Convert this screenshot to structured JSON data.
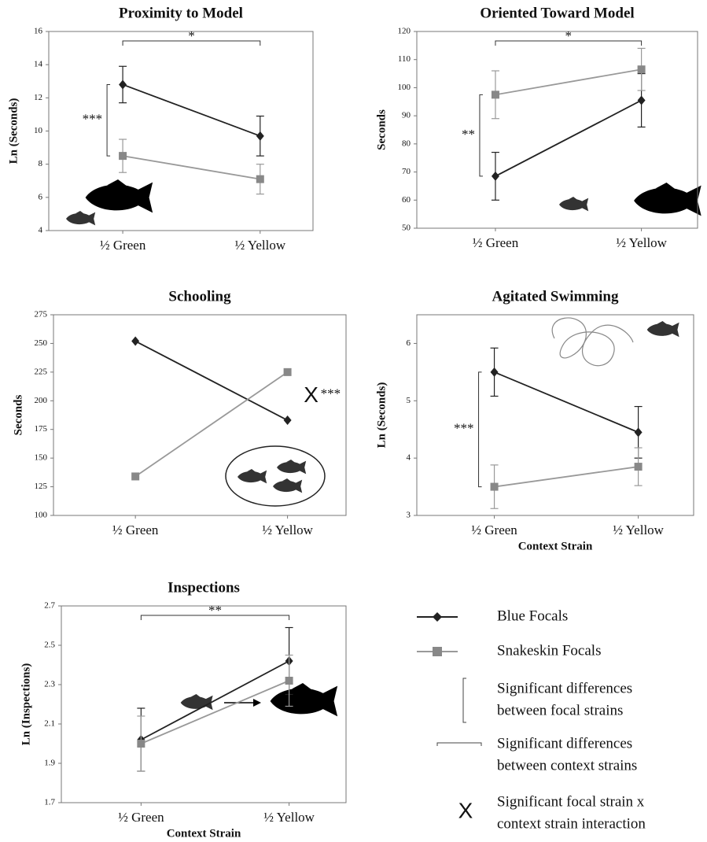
{
  "chart_data": [
    {
      "type": "line",
      "title": "Proximity to Model",
      "y_label": "Ln (Seconds)",
      "categories": [
        "½ Green",
        "½ Yellow"
      ],
      "series": [
        {
          "name": "Blue Focals",
          "color": "#222222",
          "marker": "diamond",
          "values": [
            12.8,
            9.7
          ],
          "errors": [
            1.1,
            1.2
          ]
        },
        {
          "name": "Snakeskin Focals",
          "color": "#999999",
          "marker": "square",
          "values": [
            8.5,
            7.1
          ],
          "errors": [
            1.0,
            0.9
          ]
        }
      ],
      "ylim": [
        4,
        16
      ],
      "yticks": [
        4,
        6,
        8,
        10,
        12,
        14,
        16
      ],
      "context_sig": "*",
      "focal_sig": "***"
    },
    {
      "type": "line",
      "title": "Oriented Toward Model",
      "y_label": "Seconds",
      "categories": [
        "½ Green",
        "½ Yellow"
      ],
      "series": [
        {
          "color": "#222222",
          "marker": "diamond",
          "values": [
            68.5,
            95.5
          ],
          "errors": [
            8.5,
            9.5
          ]
        },
        {
          "color": "#999999",
          "marker": "square",
          "values": [
            97.5,
            106.5
          ],
          "errors": [
            8.5,
            7.5
          ]
        }
      ],
      "ylim": [
        50,
        120
      ],
      "yticks": [
        50,
        60,
        70,
        80,
        90,
        100,
        110,
        120
      ],
      "context_sig": "*",
      "focal_sig": "**"
    },
    {
      "type": "line",
      "title": "Schooling",
      "y_label": "Seconds",
      "categories": [
        "½ Green",
        "½ Yellow"
      ],
      "series": [
        {
          "color": "#222222",
          "marker": "diamond",
          "values": [
            252,
            183
          ]
        },
        {
          "color": "#999999",
          "marker": "square",
          "values": [
            134,
            225
          ]
        }
      ],
      "ylim": [
        100,
        275
      ],
      "yticks": [
        100,
        125,
        150,
        175,
        200,
        225,
        250,
        275
      ],
      "interaction_mark": "X",
      "interaction_sig": "***"
    },
    {
      "type": "line",
      "title": "Agitated Swimming",
      "y_label": "Ln (Seconds)",
      "x_label": "Context Strain",
      "categories": [
        "½ Green",
        "½ Yellow"
      ],
      "series": [
        {
          "color": "#222222",
          "marker": "diamond",
          "values": [
            5.5,
            4.45
          ],
          "errors": [
            0.42,
            0.45
          ]
        },
        {
          "color": "#999999",
          "marker": "square",
          "values": [
            3.5,
            3.85
          ],
          "errors": [
            0.38,
            0.33
          ]
        }
      ],
      "ylim": [
        3,
        6.5
      ],
      "yticks": [
        3,
        4,
        5,
        6
      ],
      "focal_sig": "***"
    },
    {
      "type": "line",
      "title": "Inspections",
      "y_label": "Ln (Inspections)",
      "x_label": "Context Strain",
      "categories": [
        "½ Green",
        "½ Yellow"
      ],
      "series": [
        {
          "color": "#222222",
          "marker": "diamond",
          "values": [
            2.02,
            2.42
          ],
          "errors": [
            0.16,
            0.17
          ]
        },
        {
          "color": "#999999",
          "marker": "square",
          "values": [
            2.0,
            2.32
          ],
          "errors": [
            0.14,
            0.13
          ]
        }
      ],
      "ylim": [
        1.7,
        2.7
      ],
      "yticks": [
        1.7,
        1.9,
        2.1,
        2.3,
        2.5,
        2.7
      ],
      "context_sig": "**"
    }
  ],
  "legend": {
    "focal_bracket": [
      "Significant differences",
      "between focal strains"
    ],
    "context_bracket": [
      "Significant differences",
      "between context strains"
    ],
    "interaction_mark": "X",
    "interaction": [
      "Significant focal strain x",
      "context strain interaction"
    ]
  }
}
